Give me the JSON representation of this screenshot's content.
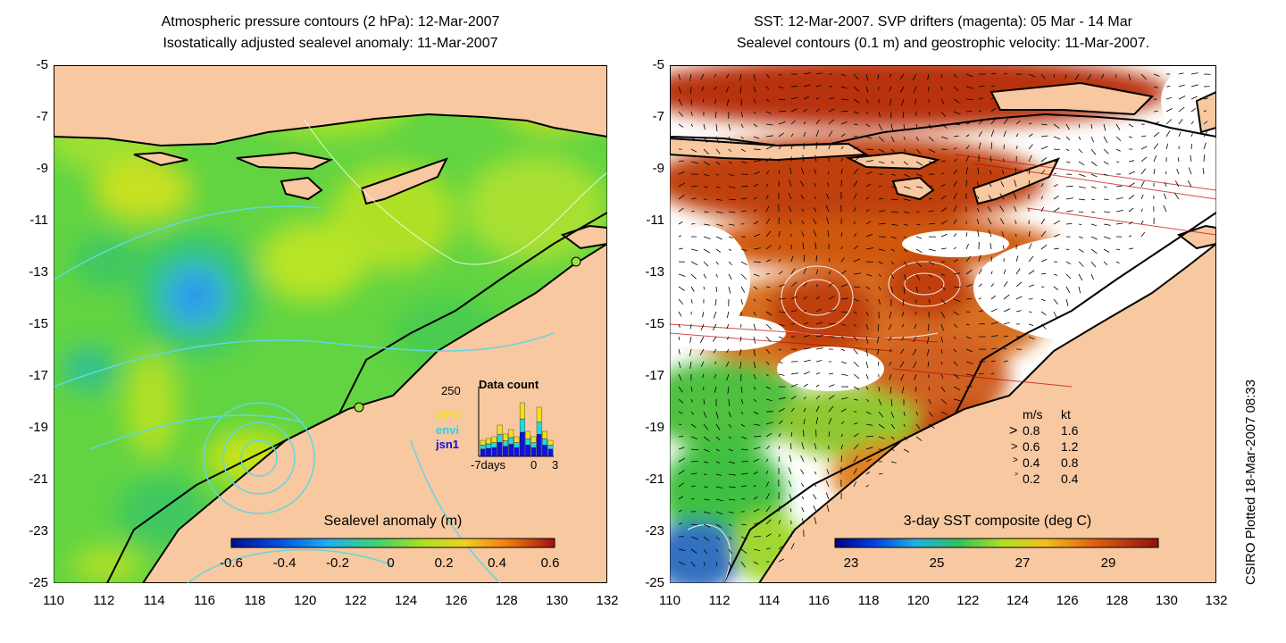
{
  "left_panel": {
    "title_line1": "Atmospheric pressure contours (2 hPa): 12-Mar-2007",
    "title_line2": "Isostatically adjusted sealevel anomaly: 11-Mar-2007",
    "colorbar_label": "Sealevel anomaly (m)",
    "colorbar_ticks": [
      "-0.6",
      "-0.4",
      "-0.2",
      "0",
      "0.2",
      "0.4",
      "0.6"
    ],
    "inset": {
      "title": "Data count",
      "ymax_label": "250",
      "legend": [
        {
          "name": "GFO",
          "color": "#f0e020"
        },
        {
          "name": "envi",
          "color": "#20d8e8"
        },
        {
          "name": "jsn1",
          "color": "#1010e0"
        }
      ],
      "xlabels": [
        "-7days",
        "0",
        "3"
      ]
    }
  },
  "right_panel": {
    "title_line1": "SST: 12-Mar-2007. SVP drifters (magenta): 05 Mar - 14 Mar",
    "title_line2": "Sealevel contours (0.1 m) and geostrophic velocity: 11-Mar-2007.",
    "colorbar_label": "3-day SST composite (deg C)",
    "colorbar_ticks": [
      "23",
      "25",
      "27",
      "29"
    ],
    "velocity_key": {
      "header_ms": "m/s",
      "header_kt": "kt",
      "rows": [
        [
          "0.8",
          "1.6"
        ],
        [
          "0.6",
          "1.2"
        ],
        [
          "0.4",
          "0.8"
        ],
        [
          "0.2",
          "0.4"
        ]
      ]
    }
  },
  "axes": {
    "y_ticks": [
      "-5",
      "-7",
      "-9",
      "-11",
      "-13",
      "-15",
      "-17",
      "-19",
      "-21",
      "-23",
      "-25"
    ],
    "x_ticks": [
      "110",
      "112",
      "114",
      "116",
      "118",
      "120",
      "122",
      "124",
      "126",
      "128",
      "130",
      "132"
    ],
    "lat_range": [
      -25,
      -5
    ],
    "lon_range": [
      110,
      132
    ]
  },
  "footer": {
    "plotted_text": "CSIRO Plotted 18-Mar-2007 08:33"
  },
  "colors": {
    "land": "#f8c8a0",
    "sla_ocean": "#60d040",
    "sst_warm": "#b83010",
    "sst_mid": "#e07020",
    "sst_cool": "#40c040"
  }
}
